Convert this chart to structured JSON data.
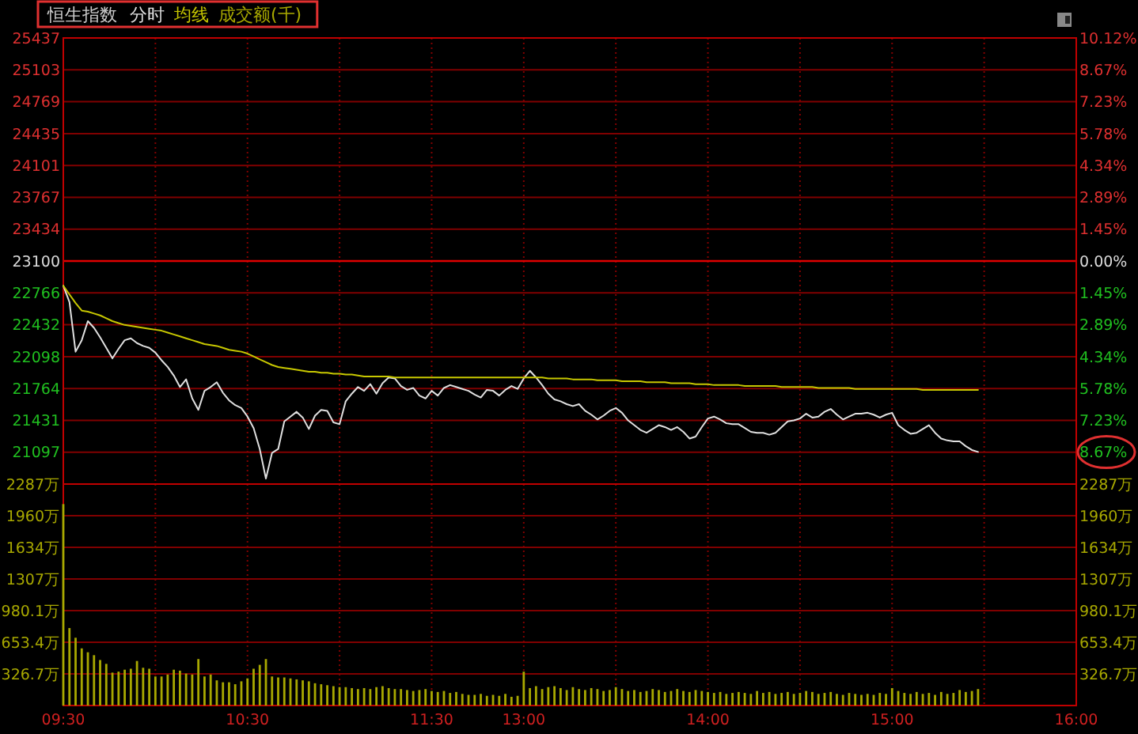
{
  "chart_data": [
    {
      "type": "line",
      "title": "恒生指数",
      "legend": "top left",
      "grid": true,
      "tick_labels": "y",
      "categories": [
        null,
        null,
        null,
        null,
        null,
        null,
        null,
        null,
        null,
        null,
        null,
        null,
        null,
        null,
        null,
        null,
        null,
        null,
        null,
        null,
        null,
        null,
        null,
        null,
        null,
        null,
        null,
        null,
        null,
        null,
        null,
        null,
        null,
        null,
        null,
        null,
        null,
        null,
        null,
        null,
        null,
        null,
        null,
        null,
        null,
        null,
        null,
        null,
        null,
        null,
        null,
        null,
        null,
        null,
        null,
        null,
        null,
        null,
        null,
        null,
        null,
        null,
        null,
        null,
        null,
        null,
        null,
        null,
        null,
        null,
        null,
        null,
        null,
        null,
        null,
        null,
        null,
        null,
        null,
        null,
        null,
        null,
        null,
        null,
        null,
        null,
        null,
        null,
        null,
        null,
        null,
        null,
        null,
        null,
        null,
        null,
        null,
        null,
        null,
        null,
        null,
        null,
        null,
        null,
        null,
        null,
        null,
        null,
        null,
        null,
        null,
        null,
        null,
        null,
        null,
        null,
        null,
        null,
        null,
        null,
        null,
        null,
        null,
        null,
        null,
        null,
        null,
        null,
        null,
        null,
        null,
        null,
        null,
        null,
        null,
        null,
        null,
        null,
        null,
        null,
        null,
        null,
        null,
        null,
        null,
        null,
        null,
        null,
        null,
        null,
        null,
        null,
        null,
        null,
        null,
        null,
        null,
        null,
        null,
        null,
        null,
        null,
        null,
        null,
        null,
        null
      ],
      "ylim": [
        20763,
        25437
      ],
      "yticks": [
        25437,
        25103,
        24769,
        24435,
        24101,
        23767,
        23434,
        23100,
        22766,
        22432,
        22098,
        21764,
        21431,
        21097
      ],
      "y2lim": [
        -10.12,
        10.12
      ],
      "y2ticks": [
        {
          "value": 10.12,
          "label": "10.12%"
        },
        {
          "value": 8.67,
          "label": "8.67%"
        },
        {
          "value": 7.23,
          "label": "7.23%"
        },
        {
          "value": 5.78,
          "label": "5.78%"
        },
        {
          "value": 4.34,
          "label": "4.34%"
        },
        {
          "value": 2.89,
          "label": "2.89%"
        },
        {
          "value": 1.45,
          "label": "1.45%"
        },
        {
          "value": 0,
          "label": "0.00%"
        },
        {
          "value": -1.45,
          "label": "1.45%"
        },
        {
          "value": -2.89,
          "label": "2.89%"
        },
        {
          "value": -4.34,
          "label": "4.34%"
        },
        {
          "value": -5.78,
          "label": "5.78%"
        },
        {
          "value": -7.23,
          "label": "7.23%"
        },
        {
          "value": -8.67,
          "label": "8.67%"
        }
      ],
      "ref_lines": [
        {
          "axis": "y",
          "value": 23100,
          "color": "#e00000"
        }
      ],
      "series": [
        {
          "name": "分时",
          "color": "#e0e0e0",
          "values": [
            22840,
            22670,
            22150,
            22270,
            22470,
            22400,
            22300,
            22190,
            22080,
            22180,
            22270,
            22290,
            22240,
            22210,
            22190,
            22140,
            22060,
            21990,
            21900,
            21780,
            21860,
            21660,
            21540,
            21740,
            21780,
            21830,
            21720,
            21640,
            21590,
            21560,
            21470,
            21350,
            21130,
            20820,
            21090,
            21130,
            21420,
            21470,
            21520,
            21460,
            21340,
            21480,
            21540,
            21530,
            21410,
            21390,
            21630,
            21710,
            21780,
            21740,
            21810,
            21710,
            21820,
            21880,
            21870,
            21790,
            21750,
            21770,
            21690,
            21660,
            21740,
            21690,
            21770,
            21800,
            21780,
            21760,
            21740,
            21700,
            21670,
            21750,
            21740,
            21690,
            21750,
            21790,
            21760,
            21870,
            21950,
            21880,
            21800,
            21710,
            21650,
            21630,
            21600,
            21580,
            21600,
            21530,
            21490,
            21440,
            21480,
            21530,
            21560,
            21510,
            21430,
            21380,
            21330,
            21300,
            21340,
            21380,
            21360,
            21330,
            21360,
            21310,
            21240,
            21260,
            21360,
            21450,
            21470,
            21440,
            21400,
            21390,
            21390,
            21350,
            21310,
            21300,
            21300,
            21280,
            21300,
            21360,
            21420,
            21430,
            21450,
            21500,
            21460,
            21470,
            21520,
            21550,
            21490,
            21440,
            21470,
            21500,
            21500,
            21510,
            21490,
            21460,
            21490,
            21510,
            21380,
            21330,
            21290,
            21300,
            21340,
            21380,
            21300,
            21240,
            21220,
            21210,
            21210,
            21160,
            21120,
            21100,
            null,
            null,
            null,
            null,
            null,
            null,
            null,
            null,
            null,
            null,
            null,
            null,
            null,
            null,
            null,
            null
          ]
        },
        {
          "name": "均线",
          "color": "#c8c800",
          "values": [
            22840,
            22750,
            22660,
            22580,
            22570,
            22550,
            22530,
            22500,
            22470,
            22450,
            22430,
            22420,
            22410,
            22400,
            22390,
            22380,
            22370,
            22350,
            22330,
            22310,
            22290,
            22270,
            22250,
            22230,
            22220,
            22210,
            22190,
            22170,
            22160,
            22150,
            22130,
            22100,
            22070,
            22040,
            22010,
            21990,
            21980,
            21970,
            21960,
            21950,
            21940,
            21940,
            21930,
            21930,
            21920,
            21920,
            21910,
            21910,
            21900,
            21890,
            21890,
            21890,
            21890,
            21890,
            21880,
            21880,
            21880,
            21880,
            21880,
            21880,
            21880,
            21880,
            21880,
            21880,
            21880,
            21880,
            21880,
            21880,
            21880,
            21880,
            21880,
            21880,
            21880,
            21880,
            21880,
            21880,
            21880,
            21880,
            21880,
            21870,
            21870,
            21870,
            21870,
            21860,
            21860,
            21860,
            21860,
            21850,
            21850,
            21850,
            21850,
            21840,
            21840,
            21840,
            21840,
            21830,
            21830,
            21830,
            21830,
            21820,
            21820,
            21820,
            21820,
            21810,
            21810,
            21810,
            21800,
            21800,
            21800,
            21800,
            21800,
            21790,
            21790,
            21790,
            21790,
            21790,
            21790,
            21780,
            21780,
            21780,
            21780,
            21780,
            21780,
            21770,
            21770,
            21770,
            21770,
            21770,
            21770,
            21760,
            21760,
            21760,
            21760,
            21760,
            21760,
            21760,
            21760,
            21760,
            21760,
            21760,
            21750,
            21750,
            21750,
            21750,
            21750,
            21750,
            21750,
            21750,
            21750,
            21750,
            null,
            null,
            null,
            null,
            null,
            null,
            null,
            null,
            null,
            null,
            null,
            null,
            null,
            null,
            null,
            null
          ]
        }
      ]
    },
    {
      "type": "bar",
      "legend": "top left",
      "grid": true,
      "categories": [
        "09:30",
        null,
        null,
        null,
        null,
        null,
        null,
        null,
        null,
        null,
        null,
        null,
        null,
        null,
        null,
        null,
        null,
        null,
        null,
        null,
        null,
        null,
        null,
        null,
        null,
        null,
        null,
        null,
        null,
        null,
        "10:30",
        null,
        null,
        null,
        null,
        null,
        null,
        null,
        null,
        null,
        null,
        null,
        null,
        null,
        null,
        null,
        null,
        null,
        null,
        null,
        null,
        null,
        null,
        null,
        null,
        null,
        null,
        null,
        null,
        null,
        "11:30",
        null,
        null,
        null,
        null,
        null,
        null,
        null,
        null,
        null,
        null,
        null,
        null,
        null,
        null,
        "13:00",
        null,
        null,
        null,
        null,
        null,
        null,
        null,
        null,
        null,
        null,
        null,
        null,
        null,
        null,
        null,
        null,
        null,
        null,
        null,
        null,
        null,
        null,
        null,
        null,
        null,
        null,
        null,
        null,
        null,
        "14:00",
        null,
        null,
        null,
        null,
        null,
        null,
        null,
        null,
        null,
        null,
        null,
        null,
        null,
        null,
        null,
        null,
        null,
        null,
        null,
        null,
        null,
        null,
        null,
        null,
        null,
        null,
        null,
        null,
        null,
        "15:00",
        null,
        null,
        null,
        null,
        null,
        null,
        null,
        null,
        null,
        null,
        null,
        null,
        null,
        null,
        null,
        null,
        null,
        null,
        null,
        null,
        null,
        null,
        null,
        null,
        null,
        null,
        null,
        null,
        null,
        "16:00"
      ],
      "ylim": [
        0,
        2287
      ],
      "yticks": [
        {
          "value": 2287,
          "label": "2287万"
        },
        {
          "value": 1960,
          "label": "1960万"
        },
        {
          "value": 1634,
          "label": "1634万"
        },
        {
          "value": 1307,
          "label": "1307万"
        },
        {
          "value": 980.1,
          "label": "980.1万"
        },
        {
          "value": 653.4,
          "label": "653.4万"
        },
        {
          "value": 326.7,
          "label": "326.7万"
        }
      ],
      "y2lim": [
        0,
        2287
      ],
      "y2ticks": [
        {
          "value": 2287,
          "label": "2287万"
        },
        {
          "value": 1960,
          "label": "1960万"
        },
        {
          "value": 1634,
          "label": "1634万"
        },
        {
          "value": 1307,
          "label": "1307万"
        },
        {
          "value": 980.1,
          "label": "980.1万"
        },
        {
          "value": 653.4,
          "label": "653.4万"
        },
        {
          "value": 326.7,
          "label": "326.7万"
        }
      ],
      "series": [
        {
          "name": "成交额(千)",
          "color": "#a8a800",
          "values": [
            2080,
            800,
            700,
            590,
            550,
            520,
            470,
            430,
            340,
            350,
            370,
            380,
            460,
            390,
            380,
            300,
            300,
            320,
            370,
            360,
            330,
            320,
            480,
            300,
            320,
            260,
            240,
            240,
            220,
            250,
            280,
            380,
            420,
            480,
            300,
            290,
            290,
            280,
            270,
            260,
            250,
            230,
            220,
            210,
            200,
            190,
            190,
            180,
            170,
            180,
            170,
            190,
            200,
            180,
            170,
            170,
            160,
            150,
            160,
            170,
            150,
            140,
            150,
            130,
            140,
            120,
            110,
            110,
            120,
            100,
            110,
            100,
            120,
            90,
            100,
            350,
            180,
            200,
            170,
            190,
            200,
            180,
            160,
            190,
            170,
            160,
            180,
            170,
            150,
            160,
            190,
            170,
            150,
            160,
            140,
            150,
            170,
            160,
            140,
            150,
            170,
            150,
            140,
            160,
            150,
            140,
            130,
            140,
            120,
            130,
            140,
            130,
            120,
            150,
            130,
            140,
            120,
            130,
            140,
            120,
            130,
            150,
            140,
            120,
            130,
            140,
            120,
            110,
            130,
            120,
            110,
            120,
            110,
            130,
            120,
            180,
            150,
            130,
            120,
            140,
            120,
            130,
            110,
            140,
            120,
            130,
            160,
            140,
            150,
            170,
            null,
            null,
            null,
            null,
            null,
            null,
            null,
            null,
            null,
            null,
            null,
            null,
            null,
            null,
            null,
            null
          ]
        }
      ]
    }
  ]
}
